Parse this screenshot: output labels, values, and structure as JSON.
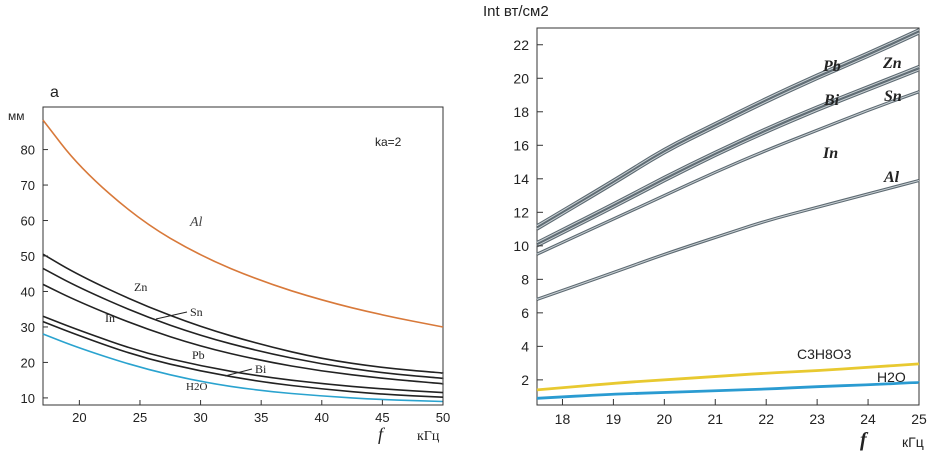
{
  "chart_data": [
    {
      "type": "line",
      "panel": "left",
      "y_axis_letter": "a",
      "ylabel": "мм",
      "xlabel_symbol": "f",
      "xlabel_unit": "кГц",
      "xlim": [
        17,
        50
      ],
      "ylim": [
        8,
        92
      ],
      "xticks": [
        20,
        25,
        30,
        35,
        40,
        45,
        50
      ],
      "yticks": [
        10,
        20,
        30,
        40,
        50,
        60,
        70,
        80
      ],
      "annotation": "ka=2",
      "x": [
        17,
        20,
        25,
        30,
        35,
        40,
        45,
        50
      ],
      "series": [
        {
          "name": "Al",
          "color": "#d8793a",
          "values": [
            88.3,
            75.0,
            60.0,
            50.0,
            42.9,
            37.5,
            33.3,
            30.0
          ]
        },
        {
          "name": "Zn",
          "color": "#222222",
          "values": [
            50.5,
            44.5,
            36.5,
            30.0,
            25.0,
            21.0,
            18.5,
            17.0
          ]
        },
        {
          "name": "Sn",
          "color": "#222222",
          "values": [
            46.5,
            41.0,
            33.5,
            27.5,
            23.0,
            19.5,
            17.0,
            15.5
          ]
        },
        {
          "name": "In",
          "color": "#222222",
          "values": [
            42.0,
            37.0,
            30.0,
            24.5,
            20.5,
            17.5,
            15.5,
            14.0
          ]
        },
        {
          "name": "Pb",
          "color": "#222222",
          "values": [
            33.0,
            29.0,
            23.0,
            19.0,
            16.0,
            14.0,
            12.5,
            11.5
          ]
        },
        {
          "name": "Bi",
          "color": "#222222",
          "values": [
            31.5,
            27.5,
            21.5,
            17.5,
            14.5,
            12.5,
            11.0,
            10.2
          ]
        },
        {
          "name": "H2O",
          "color": "#2aa3cf",
          "values": [
            28.0,
            24.0,
            18.5,
            14.5,
            12.0,
            10.5,
            9.5,
            9.0
          ]
        }
      ]
    },
    {
      "type": "line",
      "panel": "right",
      "ylabel": "Int вт/см2",
      "xlabel_symbol": "f",
      "xlabel_unit": "кГц",
      "xlim": [
        17.5,
        25
      ],
      "ylim": [
        0.5,
        23
      ],
      "xticks": [
        18,
        19,
        20,
        21,
        22,
        23,
        24,
        25
      ],
      "yticks": [
        2,
        4,
        6,
        8,
        10,
        12,
        14,
        16,
        18,
        20,
        22
      ],
      "x": [
        17.5,
        19,
        20,
        21,
        22,
        23,
        24,
        25
      ],
      "series": [
        {
          "name": "Pb",
          "color": "#67737b",
          "values": [
            11.2,
            13.9,
            15.8,
            17.3,
            18.8,
            20.2,
            21.5,
            22.9
          ]
        },
        {
          "name": "Zn",
          "color": "#67737b",
          "values": [
            11.0,
            13.7,
            15.6,
            17.1,
            18.6,
            20.0,
            21.3,
            22.7
          ]
        },
        {
          "name": "Bi",
          "color": "#67737b",
          "values": [
            10.2,
            12.5,
            14.1,
            15.6,
            17.0,
            18.3,
            19.5,
            20.7
          ]
        },
        {
          "name": "Sn",
          "color": "#67737b",
          "values": [
            10.0,
            12.3,
            13.9,
            15.4,
            16.8,
            18.1,
            19.3,
            20.5
          ]
        },
        {
          "name": "In",
          "color": "#67737b",
          "values": [
            9.5,
            11.6,
            13.0,
            14.4,
            15.7,
            16.9,
            18.1,
            19.2
          ]
        },
        {
          "name": "Al",
          "color": "#67737b",
          "values": [
            6.8,
            8.4,
            9.5,
            10.5,
            11.5,
            12.3,
            13.1,
            13.9
          ]
        },
        {
          "name": "C3H8O3",
          "color": "#e8c930",
          "values": [
            1.4,
            1.8,
            2.0,
            2.2,
            2.4,
            2.55,
            2.75,
            2.95
          ]
        },
        {
          "name": "H2O",
          "color": "#2a9bd1",
          "values": [
            0.9,
            1.15,
            1.25,
            1.35,
            1.45,
            1.6,
            1.7,
            1.85
          ]
        }
      ]
    }
  ],
  "left_labels": {
    "Al": "Al",
    "Zn": "Zn",
    "Sn": "Sn",
    "In": "In",
    "Pb": "Pb",
    "Bi": "Bi",
    "H2O": "H2O"
  },
  "right_labels": {
    "Pb": "Pb",
    "Zn": "Zn",
    "Bi": "Bi",
    "Sn": "Sn",
    "In": "In",
    "Al": "Al",
    "C3H8O3": "C3H8O3",
    "H2O": "H2O"
  }
}
